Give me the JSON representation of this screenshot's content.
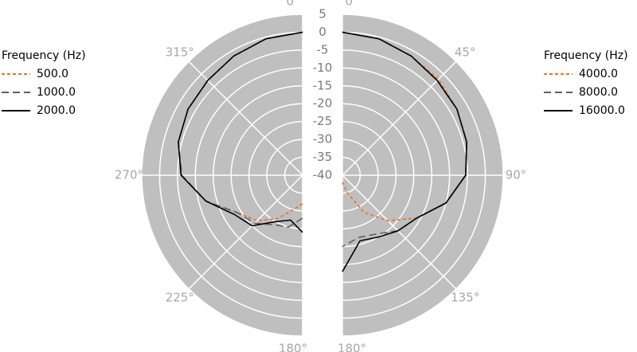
{
  "chart_data": [
    {
      "type": "polar",
      "side": "left",
      "rlim": [
        -40,
        5
      ],
      "rticks": [
        5,
        0,
        -5,
        -10,
        -15,
        -20,
        -25,
        -30,
        -35,
        -40
      ],
      "thetaticks": [
        {
          "value": 180,
          "label": "180°"
        },
        {
          "value": 225,
          "label": "225°"
        },
        {
          "value": 270,
          "label": "270°"
        },
        {
          "value": 315,
          "label": "315°"
        },
        {
          "value": 360,
          "label": "0°"
        }
      ],
      "legend_title": "Frequency (Hz)",
      "theta": [
        180,
        195,
        210,
        225,
        240,
        255,
        270,
        285,
        300,
        315,
        330,
        345,
        360
      ],
      "series": [
        {
          "name": "500.0",
          "color": "#e8742a",
          "dash": "4,3",
          "values": [
            -32,
            -30,
            -26,
            -22,
            -19,
            -12,
            -6,
            -4,
            -3,
            -2.5,
            -1.5,
            -0.5,
            0
          ]
        },
        {
          "name": "1000.0",
          "color": "#5f5f5f",
          "dash": "9,5",
          "values": [
            -28,
            -25,
            -24,
            -21,
            -19,
            -12,
            -6.2,
            -4,
            -3,
            -2.5,
            -1.5,
            -0.5,
            0
          ]
        },
        {
          "name": "2000.0",
          "color": "#000000",
          "dash": "none",
          "values": [
            -24,
            -27,
            -25,
            -20,
            -18,
            -12,
            -6,
            -4,
            -3,
            -2.5,
            -1.5,
            -0.5,
            0
          ]
        }
      ]
    },
    {
      "type": "polar",
      "side": "right",
      "rlim": [
        -40,
        5
      ],
      "thetaticks": [
        {
          "value": 0,
          "label": "0°"
        },
        {
          "value": 45,
          "label": "45°"
        },
        {
          "value": 90,
          "label": "90°"
        },
        {
          "value": 135,
          "label": "135°"
        },
        {
          "value": 180,
          "label": "180°"
        }
      ],
      "legend_title": "Frequency (Hz)",
      "theta": [
        0,
        15,
        30,
        45,
        60,
        75,
        90,
        105,
        120,
        135,
        150,
        165,
        180
      ],
      "series": [
        {
          "name": "4000.0",
          "color": "#e8742a",
          "dash": "4,3",
          "values": [
            0,
            -0.5,
            -1.5,
            -2,
            -3,
            -4,
            -5.5,
            -10,
            -16,
            -22,
            -28,
            -35,
            -38
          ]
        },
        {
          "name": "8000.0",
          "color": "#5f5f5f",
          "dash": "9,5",
          "values": [
            0,
            -0.5,
            -1.5,
            -2.5,
            -3,
            -4,
            -5.5,
            -10,
            -16,
            -18,
            -21,
            -22,
            -20
          ]
        },
        {
          "name": "16000.0",
          "color": "#000000",
          "dash": "none",
          "values": [
            0,
            -0.5,
            -1.5,
            -2.5,
            -3,
            -4,
            -5.5,
            -10,
            -16,
            -18,
            -20,
            -21,
            -13
          ]
        }
      ]
    }
  ]
}
